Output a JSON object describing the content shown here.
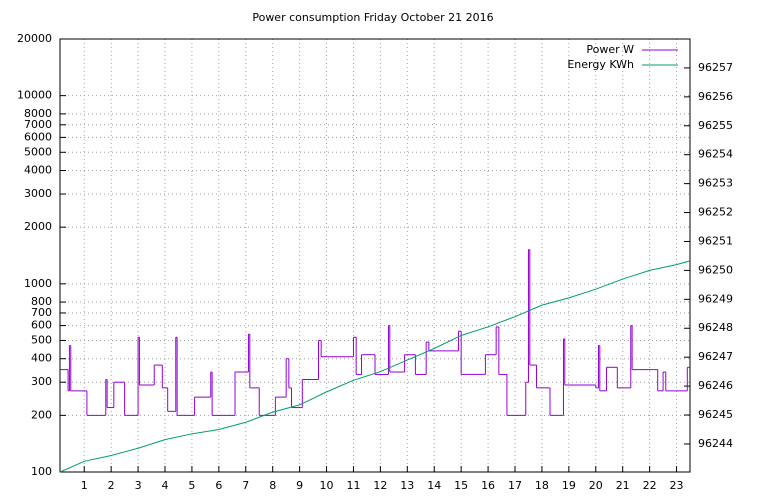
{
  "chart_data": {
    "type": "line",
    "title": "Power consumption Friday October 21 2016",
    "xlim": [
      0.1,
      23.5
    ],
    "xticks": [
      1,
      2,
      3,
      4,
      5,
      6,
      7,
      8,
      9,
      10,
      11,
      12,
      13,
      14,
      15,
      16,
      17,
      18,
      19,
      20,
      21,
      22,
      23
    ],
    "ylim": [
      100,
      20000
    ],
    "log_y": true,
    "yticks": [
      100,
      200,
      300,
      400,
      500,
      600,
      700,
      800,
      1000,
      2000,
      3000,
      4000,
      5000,
      6000,
      7000,
      8000,
      10000,
      20000
    ],
    "y2lim": [
      96243.03,
      96258.0
    ],
    "y2ticks": [
      96244,
      96245,
      96246,
      96247,
      96248,
      96249,
      96250,
      96251,
      96252,
      96253,
      96254,
      96255,
      96256,
      96257
    ],
    "grid": true,
    "legend": "top-right",
    "series": [
      {
        "name": "Power W",
        "color": "#9400d3",
        "step": true,
        "x": [
          0.1,
          0.4,
          0.45,
          0.5,
          1.1,
          1.8,
          1.85,
          2.1,
          2.5,
          3.0,
          3.05,
          3.6,
          3.9,
          4.1,
          4.4,
          4.45,
          5.1,
          5.7,
          5.75,
          6.6,
          7.1,
          7.15,
          7.5,
          8.1,
          8.5,
          8.6,
          8.7,
          9.1,
          9.7,
          9.8,
          11.0,
          11.1,
          11.3,
          11.8,
          12.3,
          12.35,
          12.9,
          13.3,
          13.7,
          13.8,
          14.9,
          15.0,
          15.9,
          16.3,
          16.4,
          16.7,
          17.4,
          17.5,
          17.55,
          17.8,
          18.3,
          18.8,
          18.85,
          19.8,
          20.0,
          20.1,
          20.15,
          20.4,
          20.8,
          21.3,
          21.35,
          22.3,
          22.5,
          22.6,
          23.4
        ],
        "values": [
          350,
          270,
          470,
          270,
          200,
          310,
          220,
          300,
          200,
          520,
          290,
          370,
          280,
          210,
          520,
          200,
          250,
          340,
          200,
          340,
          540,
          280,
          200,
          250,
          400,
          280,
          220,
          310,
          500,
          410,
          520,
          330,
          420,
          330,
          600,
          340,
          420,
          330,
          490,
          440,
          560,
          330,
          420,
          590,
          330,
          200,
          300,
          1520,
          370,
          280,
          200,
          510,
          290,
          290,
          280,
          470,
          270,
          360,
          280,
          600,
          350,
          270,
          340,
          270,
          360
        ]
      },
      {
        "name": "Energy KWh",
        "color": "#009e73",
        "axis": "y2",
        "x": [
          0.1,
          1,
          2,
          3,
          4,
          5,
          6,
          7,
          8,
          9,
          10,
          11,
          12,
          13,
          14,
          15,
          16,
          17,
          18,
          19,
          20,
          21,
          22,
          23,
          23.5
        ],
        "values": [
          96243.03,
          96243.4,
          96243.6,
          96243.85,
          96244.15,
          96244.35,
          96244.5,
          96244.75,
          96245.1,
          96245.35,
          96245.8,
          96246.2,
          96246.5,
          96246.9,
          96247.3,
          96247.75,
          96248.05,
          96248.4,
          96248.8,
          96249.05,
          96249.35,
          96249.7,
          96250.0,
          96250.2,
          96250.33
        ]
      }
    ]
  }
}
